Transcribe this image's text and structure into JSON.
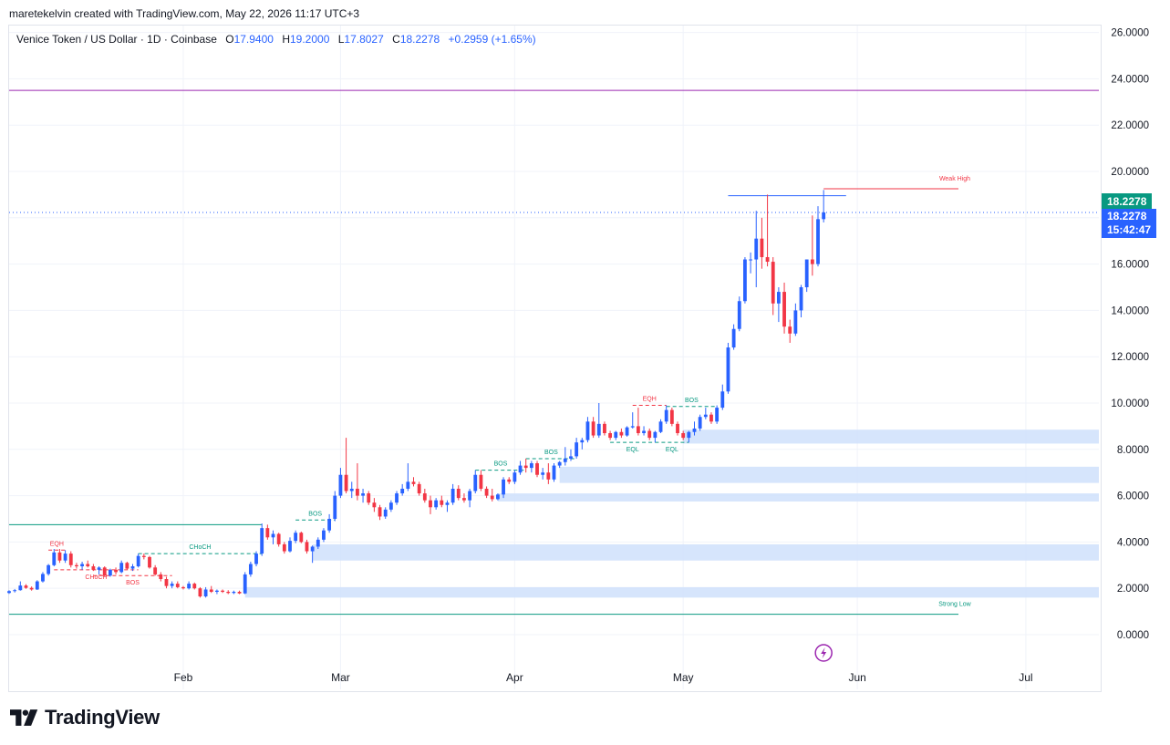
{
  "header": {
    "creator_text": "maretekelvin created with TradingView.com, May 22, 2026 11:17 UTC+3"
  },
  "legend": {
    "symbol": "Venice Token / US Dollar · 1D · Coinbase",
    "open_label": "O",
    "open": "17.9400",
    "high_label": "H",
    "high": "19.2000",
    "low_label": "L",
    "low": "17.8027",
    "close_label": "C",
    "close": "18.2278",
    "change": "+0.2959 (+1.65%)"
  },
  "price_tags": {
    "last_price": "18.2278",
    "countdown_price": "18.2278",
    "countdown": "15:42:47"
  },
  "brand": {
    "logo_icon": "tradingview-logo-icon",
    "name": "TradingView"
  },
  "colors": {
    "up": "#2962ff",
    "down": "#f23645",
    "zone": "#cfe0fc",
    "level": "#9c27b0",
    "strong_low": "#089981",
    "tag_green": "#089981",
    "tag_blue": "#2962ff"
  },
  "chart_data": {
    "type": "candlestick",
    "x_axis": {
      "labels": [
        {
          "date": "2026-02-01",
          "label": "Feb"
        },
        {
          "date": "2026-03-01",
          "label": "Mar"
        },
        {
          "date": "2026-04-01",
          "label": "Apr"
        },
        {
          "date": "2026-05-01",
          "label": "May"
        },
        {
          "date": "2026-06-01",
          "label": "Jun"
        },
        {
          "date": "2026-07-01",
          "label": "Jul"
        }
      ],
      "range": [
        "2026-01-01",
        "2026-07-14"
      ]
    },
    "y_axis": {
      "ticks": [
        "0.0000",
        "2.0000",
        "4.0000",
        "6.0000",
        "8.0000",
        "10.0000",
        "12.0000",
        "14.0000",
        "16.0000",
        "18.0000",
        "20.0000",
        "22.0000",
        "24.0000",
        "26.0000"
      ],
      "range": [
        -1.3,
        26.3
      ],
      "side": "right",
      "grid": true
    },
    "candles": [
      [
        "2026-01-01",
        1.8,
        1.92,
        1.76,
        1.88
      ],
      [
        "2026-01-02",
        1.88,
        1.97,
        1.82,
        1.92
      ],
      [
        "2026-01-03",
        1.92,
        2.3,
        1.9,
        2.12
      ],
      [
        "2026-01-04",
        2.12,
        2.18,
        1.98,
        2.02
      ],
      [
        "2026-01-05",
        2.02,
        2.08,
        1.9,
        1.95
      ],
      [
        "2026-01-06",
        1.95,
        2.35,
        1.93,
        2.3
      ],
      [
        "2026-01-07",
        2.3,
        2.7,
        2.25,
        2.62
      ],
      [
        "2026-01-08",
        2.62,
        3.05,
        2.55,
        3.0
      ],
      [
        "2026-01-09",
        3.0,
        3.7,
        2.95,
        3.55
      ],
      [
        "2026-01-10",
        3.55,
        3.7,
        3.1,
        3.2
      ],
      [
        "2026-01-11",
        3.2,
        3.65,
        3.1,
        3.5
      ],
      [
        "2026-01-12",
        3.5,
        3.6,
        2.9,
        3.0
      ],
      [
        "2026-01-13",
        3.0,
        3.1,
        2.85,
        2.95
      ],
      [
        "2026-01-14",
        2.95,
        3.15,
        2.8,
        3.05
      ],
      [
        "2026-01-15",
        3.05,
        3.2,
        2.9,
        2.95
      ],
      [
        "2026-01-16",
        2.95,
        3.05,
        2.75,
        2.8
      ],
      [
        "2026-01-17",
        2.8,
        2.95,
        2.6,
        2.9
      ],
      [
        "2026-01-18",
        2.9,
        2.95,
        2.5,
        2.55
      ],
      [
        "2026-01-19",
        2.55,
        2.85,
        2.5,
        2.8
      ],
      [
        "2026-01-20",
        2.8,
        2.9,
        2.6,
        2.7
      ],
      [
        "2026-01-21",
        2.7,
        3.2,
        2.65,
        3.1
      ],
      [
        "2026-01-22",
        3.1,
        3.15,
        2.8,
        2.85
      ],
      [
        "2026-01-23",
        2.85,
        3.05,
        2.75,
        2.95
      ],
      [
        "2026-01-24",
        2.95,
        3.5,
        2.9,
        3.4
      ],
      [
        "2026-01-25",
        3.4,
        3.5,
        3.25,
        3.35
      ],
      [
        "2026-01-26",
        3.35,
        3.4,
        2.85,
        2.9
      ],
      [
        "2026-01-27",
        2.9,
        3.0,
        2.55,
        2.6
      ],
      [
        "2026-01-28",
        2.6,
        2.7,
        2.3,
        2.4
      ],
      [
        "2026-01-29",
        2.4,
        2.5,
        2.0,
        2.1
      ],
      [
        "2026-01-30",
        2.1,
        2.3,
        2.0,
        2.2
      ],
      [
        "2026-01-31",
        2.2,
        2.3,
        2.0,
        2.05
      ],
      [
        "2026-02-01",
        2.05,
        2.1,
        1.95,
        2.0
      ],
      [
        "2026-02-02",
        2.0,
        2.3,
        1.95,
        2.2
      ],
      [
        "2026-02-03",
        2.2,
        2.25,
        1.95,
        2.0
      ],
      [
        "2026-02-04",
        2.0,
        2.05,
        1.6,
        1.65
      ],
      [
        "2026-02-05",
        1.65,
        2.05,
        1.6,
        1.95
      ],
      [
        "2026-02-06",
        1.95,
        2.1,
        1.8,
        1.85
      ],
      [
        "2026-02-07",
        1.85,
        1.95,
        1.75,
        1.9
      ],
      [
        "2026-02-08",
        1.9,
        1.95,
        1.8,
        1.85
      ],
      [
        "2026-02-09",
        1.85,
        1.92,
        1.75,
        1.8
      ],
      [
        "2026-02-10",
        1.8,
        1.9,
        1.75,
        1.85
      ],
      [
        "2026-02-11",
        1.85,
        1.9,
        1.75,
        1.78
      ],
      [
        "2026-02-12",
        1.78,
        2.7,
        1.75,
        2.6
      ],
      [
        "2026-02-13",
        2.6,
        3.15,
        2.5,
        3.05
      ],
      [
        "2026-02-14",
        3.05,
        3.6,
        2.95,
        3.5
      ],
      [
        "2026-02-15",
        3.5,
        4.8,
        3.4,
        4.6
      ],
      [
        "2026-02-16",
        4.6,
        4.75,
        4.1,
        4.2
      ],
      [
        "2026-02-17",
        4.2,
        4.5,
        3.9,
        4.35
      ],
      [
        "2026-02-18",
        4.35,
        4.4,
        3.8,
        3.9
      ],
      [
        "2026-02-19",
        3.9,
        4.0,
        3.5,
        3.6
      ],
      [
        "2026-02-20",
        3.6,
        4.2,
        3.55,
        4.05
      ],
      [
        "2026-02-21",
        4.05,
        4.5,
        3.95,
        4.4
      ],
      [
        "2026-02-22",
        4.4,
        4.45,
        3.95,
        4.0
      ],
      [
        "2026-02-23",
        4.0,
        4.1,
        3.5,
        3.6
      ],
      [
        "2026-02-24",
        3.6,
        3.85,
        3.1,
        3.8
      ],
      [
        "2026-02-25",
        3.8,
        4.2,
        3.7,
        4.1
      ],
      [
        "2026-02-26",
        4.1,
        4.6,
        4.0,
        4.5
      ],
      [
        "2026-02-27",
        4.5,
        5.2,
        4.4,
        5.0
      ],
      [
        "2026-02-28",
        5.0,
        6.2,
        4.9,
        6.0
      ],
      [
        "2026-03-01",
        6.0,
        7.2,
        5.9,
        6.9
      ],
      [
        "2026-03-02",
        6.9,
        8.5,
        6.1,
        6.2
      ],
      [
        "2026-03-03",
        6.2,
        6.6,
        5.9,
        6.3
      ],
      [
        "2026-03-04",
        6.3,
        7.4,
        5.8,
        6.0
      ],
      [
        "2026-03-05",
        6.0,
        6.3,
        5.7,
        6.1
      ],
      [
        "2026-03-06",
        6.1,
        6.2,
        5.6,
        5.7
      ],
      [
        "2026-03-07",
        5.7,
        5.9,
        5.3,
        5.5
      ],
      [
        "2026-03-08",
        5.5,
        5.6,
        4.95,
        5.1
      ],
      [
        "2026-03-09",
        5.1,
        5.5,
        5.0,
        5.4
      ],
      [
        "2026-03-10",
        5.4,
        5.8,
        5.3,
        5.7
      ],
      [
        "2026-03-11",
        5.7,
        6.2,
        5.6,
        6.1
      ],
      [
        "2026-03-12",
        6.1,
        6.5,
        6.0,
        6.3
      ],
      [
        "2026-03-13",
        6.3,
        7.4,
        6.2,
        6.6
      ],
      [
        "2026-03-14",
        6.6,
        6.8,
        6.4,
        6.5
      ],
      [
        "2026-03-15",
        6.5,
        6.6,
        6.0,
        6.1
      ],
      [
        "2026-03-16",
        6.1,
        6.3,
        5.7,
        5.8
      ],
      [
        "2026-03-17",
        5.8,
        6.0,
        5.2,
        5.5
      ],
      [
        "2026-03-18",
        5.5,
        5.9,
        5.4,
        5.8
      ],
      [
        "2026-03-19",
        5.8,
        6.0,
        5.5,
        5.6
      ],
      [
        "2026-03-20",
        5.6,
        5.8,
        5.3,
        5.7
      ],
      [
        "2026-03-21",
        5.7,
        6.5,
        5.6,
        6.3
      ],
      [
        "2026-03-22",
        6.3,
        6.45,
        5.8,
        5.9
      ],
      [
        "2026-03-23",
        5.9,
        6.1,
        5.7,
        5.8
      ],
      [
        "2026-03-24",
        5.8,
        6.3,
        5.5,
        6.2
      ],
      [
        "2026-03-25",
        6.2,
        7.1,
        6.1,
        6.9
      ],
      [
        "2026-03-26",
        6.9,
        7.1,
        6.2,
        6.3
      ],
      [
        "2026-03-27",
        6.3,
        6.4,
        5.9,
        6.0
      ],
      [
        "2026-03-28",
        6.0,
        6.3,
        5.75,
        5.85
      ],
      [
        "2026-03-29",
        5.85,
        6.1,
        5.8,
        6.05
      ],
      [
        "2026-03-30",
        6.05,
        6.8,
        5.9,
        6.7
      ],
      [
        "2026-03-31",
        6.7,
        6.8,
        6.5,
        6.6
      ],
      [
        "2026-04-01",
        6.6,
        7.1,
        6.5,
        7.0
      ],
      [
        "2026-04-02",
        7.0,
        7.5,
        6.9,
        7.3
      ],
      [
        "2026-04-03",
        7.3,
        7.6,
        7.0,
        7.2
      ],
      [
        "2026-04-04",
        7.2,
        7.5,
        7.0,
        7.4
      ],
      [
        "2026-04-05",
        7.4,
        7.5,
        6.8,
        6.9
      ],
      [
        "2026-04-06",
        6.9,
        7.2,
        6.7,
        7.0
      ],
      [
        "2026-04-07",
        7.0,
        7.4,
        6.5,
        6.7
      ],
      [
        "2026-04-08",
        6.7,
        7.4,
        6.6,
        7.3
      ],
      [
        "2026-04-09",
        7.3,
        7.5,
        7.2,
        7.45
      ],
      [
        "2026-04-10",
        7.45,
        8.1,
        7.3,
        7.6
      ],
      [
        "2026-04-11",
        7.6,
        8.0,
        7.5,
        7.7
      ],
      [
        "2026-04-12",
        7.7,
        8.5,
        7.6,
        8.3
      ],
      [
        "2026-04-13",
        8.3,
        8.5,
        8.0,
        8.4
      ],
      [
        "2026-04-14",
        8.4,
        9.4,
        8.3,
        9.2
      ],
      [
        "2026-04-15",
        9.2,
        9.4,
        8.5,
        8.6
      ],
      [
        "2026-04-16",
        8.6,
        10.0,
        8.5,
        9.1
      ],
      [
        "2026-04-17",
        9.1,
        9.2,
        8.6,
        8.7
      ],
      [
        "2026-04-18",
        8.7,
        8.8,
        8.4,
        8.5
      ],
      [
        "2026-04-19",
        8.5,
        8.8,
        8.4,
        8.75
      ],
      [
        "2026-04-20",
        8.75,
        8.9,
        8.5,
        8.6
      ],
      [
        "2026-04-21",
        8.6,
        9.0,
        8.55,
        8.95
      ],
      [
        "2026-04-22",
        8.95,
        9.6,
        8.9,
        9.0
      ],
      [
        "2026-04-23",
        9.0,
        9.8,
        8.6,
        8.7
      ],
      [
        "2026-04-24",
        8.7,
        9.0,
        8.6,
        8.8
      ],
      [
        "2026-04-25",
        8.8,
        8.9,
        8.4,
        8.5
      ],
      [
        "2026-04-26",
        8.5,
        8.8,
        8.3,
        8.75
      ],
      [
        "2026-04-27",
        8.75,
        9.3,
        8.7,
        9.2
      ],
      [
        "2026-04-28",
        9.2,
        9.9,
        9.1,
        9.7
      ],
      [
        "2026-04-29",
        9.7,
        9.8,
        9.0,
        9.1
      ],
      [
        "2026-04-30",
        9.1,
        9.2,
        8.6,
        8.7
      ],
      [
        "2026-05-01",
        8.7,
        8.8,
        8.4,
        8.5
      ],
      [
        "2026-05-02",
        8.5,
        8.8,
        8.3,
        8.75
      ],
      [
        "2026-05-03",
        8.75,
        9.2,
        8.6,
        8.9
      ],
      [
        "2026-05-04",
        8.9,
        9.5,
        8.8,
        9.4
      ],
      [
        "2026-05-05",
        9.4,
        9.8,
        9.3,
        9.5
      ],
      [
        "2026-05-06",
        9.5,
        9.6,
        9.1,
        9.2
      ],
      [
        "2026-05-07",
        9.2,
        9.9,
        9.1,
        9.8
      ],
      [
        "2026-05-08",
        9.8,
        10.8,
        9.7,
        10.5
      ],
      [
        "2026-05-09",
        10.5,
        12.6,
        10.4,
        12.4
      ],
      [
        "2026-05-10",
        12.4,
        13.4,
        12.3,
        13.2
      ],
      [
        "2026-05-11",
        13.2,
        14.6,
        13.1,
        14.4
      ],
      [
        "2026-05-12",
        14.4,
        16.3,
        14.3,
        16.2
      ],
      [
        "2026-05-13",
        16.2,
        16.5,
        15.6,
        16.2
      ],
      [
        "2026-05-14",
        16.2,
        18.3,
        15.0,
        17.1
      ],
      [
        "2026-05-15",
        17.1,
        18.0,
        15.8,
        16.3
      ],
      [
        "2026-05-16",
        16.3,
        19.0,
        15.9,
        16.1
      ],
      [
        "2026-05-17",
        16.1,
        16.3,
        13.8,
        14.3
      ],
      [
        "2026-05-18",
        14.3,
        15.0,
        13.5,
        14.8
      ],
      [
        "2026-05-19",
        14.8,
        15.2,
        13.0,
        13.3
      ],
      [
        "2026-05-20",
        13.3,
        13.6,
        12.6,
        13.0
      ],
      [
        "2026-05-21",
        13.0,
        14.3,
        12.9,
        14.0
      ],
      [
        "2026-05-22",
        14.0,
        15.1,
        13.7,
        15.0
      ],
      [
        "2026-05-23",
        15.0,
        16.2,
        14.8,
        16.2
      ],
      [
        "2026-05-24",
        16.2,
        18.1,
        15.5,
        16.0
      ],
      [
        "2026-05-25",
        16.0,
        18.5,
        15.9,
        17.94
      ],
      [
        "2026-05-26",
        17.94,
        19.2,
        17.8,
        18.23
      ]
    ],
    "levels": [
      {
        "price": 23.5,
        "from": "2026-01-01",
        "to": "2026-07-14",
        "color": "#9c27b0"
      },
      {
        "price": 18.95,
        "from": "2026-05-09",
        "to": "2026-05-30",
        "color": "#2962ff",
        "label": ""
      },
      {
        "price": 19.25,
        "from": "2026-05-26",
        "to": "2026-06-19",
        "color": "#f23645",
        "label": "Weak High"
      },
      {
        "price": 0.88,
        "from": "2026-01-01",
        "to": "2026-06-19",
        "color": "#089981",
        "label": "Strong Low"
      },
      {
        "price": 4.75,
        "from": "2026-01-01",
        "to": "2026-02-15",
        "color": "#089981",
        "label": ""
      }
    ],
    "zones": [
      {
        "from": "2026-05-01",
        "low": 8.25,
        "high": 8.85
      },
      {
        "from": "2026-04-09",
        "low": 6.55,
        "high": 7.25
      },
      {
        "from": "2026-03-29",
        "low": 5.75,
        "high": 6.1
      },
      {
        "from": "2026-02-24",
        "low": 3.2,
        "high": 3.9
      },
      {
        "from": "2026-02-12",
        "low": 1.6,
        "high": 2.05
      }
    ],
    "structure": [
      {
        "label": "EQH",
        "from": "2026-01-08",
        "to": "2026-01-11",
        "price": 3.65,
        "color": "#f23645",
        "dashed": true,
        "label_pos": "above"
      },
      {
        "label": "CHoCH",
        "from": "2026-01-09",
        "to": "2026-01-24",
        "price": 2.8,
        "color": "#f23645",
        "dashed": true,
        "label_pos": "below"
      },
      {
        "label": "BOS",
        "from": "2026-01-16",
        "to": "2026-01-30",
        "price": 2.55,
        "color": "#f23645",
        "dashed": true,
        "label_pos": "below"
      },
      {
        "label": "CHoCH",
        "from": "2026-01-24",
        "to": "2026-02-15",
        "price": 3.5,
        "color": "#089981",
        "dashed": true,
        "label_pos": "above"
      },
      {
        "label": "BOS",
        "from": "2026-02-21",
        "to": "2026-02-28",
        "price": 4.95,
        "color": "#089981",
        "dashed": true,
        "label_pos": "above"
      },
      {
        "label": "BOS",
        "from": "2026-03-25",
        "to": "2026-04-03",
        "price": 7.1,
        "color": "#089981",
        "dashed": true,
        "label_pos": "above"
      },
      {
        "label": "BOS",
        "from": "2026-04-03",
        "to": "2026-04-12",
        "price": 7.6,
        "color": "#089981",
        "dashed": true,
        "label_pos": "above"
      },
      {
        "label": "EQH",
        "from": "2026-04-22",
        "to": "2026-04-28",
        "price": 9.9,
        "color": "#f23645",
        "dashed": true,
        "label_pos": "above"
      },
      {
        "label": "BOS",
        "from": "2026-04-28",
        "to": "2026-05-07",
        "price": 9.85,
        "color": "#089981",
        "dashed": true,
        "label_pos": "above"
      },
      {
        "label": "EQL",
        "from": "2026-04-18",
        "to": "2026-04-26",
        "price": 8.3,
        "color": "#089981",
        "dashed": true,
        "label_pos": "below"
      },
      {
        "label": "EQL",
        "from": "2026-04-26",
        "to": "2026-05-02",
        "price": 8.3,
        "color": "#089981",
        "dashed": true,
        "label_pos": "below"
      }
    ],
    "last_price_line": 18.2278,
    "event_marker": {
      "date": "2026-05-26",
      "icon": "lightning-icon",
      "color": "#9c27b0"
    }
  }
}
